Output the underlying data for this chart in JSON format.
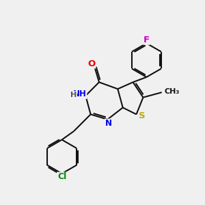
{
  "background_color": "#f0f0f0",
  "bond_color": "#111111",
  "bond_lw": 1.5,
  "atom_colors": {
    "N": "#0000ee",
    "O": "#ee0000",
    "S": "#bbaa00",
    "F": "#cc00cc",
    "Cl": "#008800",
    "C": "#111111"
  },
  "fs": 8.5,
  "figsize": [
    3.0,
    3.0
  ],
  "dpi": 100,
  "xlim": [
    -1,
    11
  ],
  "ylim": [
    -1,
    11
  ]
}
